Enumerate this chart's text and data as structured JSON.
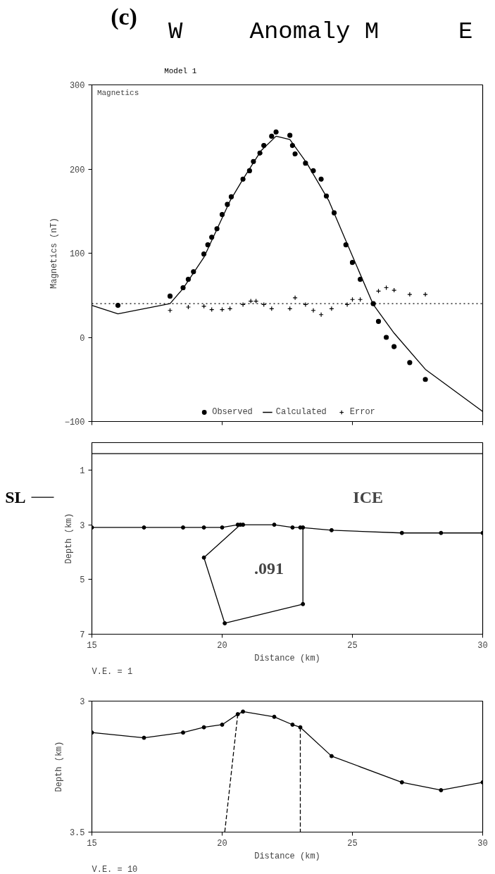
{
  "chart_data": [
    {
      "type": "scatter",
      "title": "Anomaly M",
      "ylabel": "Magnetics (nT)",
      "annotations": [
        "(c)",
        "W",
        "E",
        "Model 1",
        "Magnetics"
      ],
      "xlim": [
        15,
        30
      ],
      "ylim": [
        -100,
        300
      ],
      "xticks": [
        15,
        20,
        25,
        30
      ],
      "yticks": [
        -100,
        0,
        100,
        200,
        300
      ],
      "tick_labels": "y",
      "legend": "bottom",
      "ref_lines": [
        {
          "axis": "y",
          "value": 40,
          "label": null,
          "color": "#000000",
          "line_style": "dotted"
        }
      ],
      "series": [
        {
          "name": "Observed",
          "type": "scatter",
          "marker": "circle",
          "color": "#000000",
          "x": [
            16.0,
            18.0,
            18.5,
            18.7,
            18.9,
            19.3,
            19.45,
            19.6,
            19.8,
            20.0,
            20.2,
            20.35,
            20.8,
            21.05,
            21.2,
            21.45,
            21.6,
            21.9,
            22.07,
            22.6,
            22.7,
            22.8,
            23.2,
            23.5,
            23.8,
            24.0,
            24.3,
            24.75,
            25.0,
            25.3,
            25.8,
            26.0,
            26.3,
            26.6,
            27.2,
            27.8
          ],
          "values": [
            38,
            49,
            59,
            69,
            78,
            99,
            110,
            119,
            129,
            146,
            158,
            167,
            188,
            198,
            209,
            219,
            228,
            239,
            244,
            240,
            228,
            218,
            207,
            198,
            188,
            168,
            148,
            110,
            89,
            69,
            40,
            19,
            0,
            -11,
            -30,
            -50
          ]
        },
        {
          "name": "Calculated",
          "type": "line",
          "marker": "none",
          "color": "#000000",
          "x": [
            15,
            16,
            18,
            18.5,
            19.3,
            20.3,
            20.8,
            21.5,
            22.07,
            22.6,
            23.25,
            24.1,
            24.8,
            25.8,
            26.6,
            27.8,
            30
          ],
          "values": [
            38,
            28,
            40,
            58,
            95,
            162,
            188,
            222,
            239,
            235,
            207,
            162,
            111,
            39,
            5,
            -38,
            -88
          ]
        },
        {
          "name": "Error",
          "type": "scatter",
          "marker": "cross",
          "color": "#000000",
          "x": [
            18.0,
            18.7,
            19.3,
            19.6,
            20.0,
            20.3,
            20.8,
            21.1,
            21.3,
            21.6,
            21.9,
            22.6,
            22.8,
            23.2,
            23.5,
            23.8,
            24.2,
            24.8,
            25.0,
            25.3,
            26.0,
            26.3,
            26.6,
            27.2,
            27.8
          ],
          "values": [
            32,
            36,
            37,
            33,
            33,
            34,
            39,
            43,
            43,
            39,
            34,
            34,
            47,
            39,
            32,
            27,
            34,
            39,
            45,
            45,
            55,
            59,
            56,
            51,
            51
          ]
        }
      ]
    },
    {
      "type": "line",
      "xlabel": "Distance (km)",
      "ylabel": "Depth (km)",
      "annotations": [
        "SL",
        "ICE",
        ".091",
        "V.E. = 1"
      ],
      "xlim": [
        15,
        30
      ],
      "ylim": [
        7,
        0
      ],
      "xticks": [
        15,
        20,
        25,
        30
      ],
      "yticks": [
        1,
        3,
        5,
        7
      ],
      "marker": "circle",
      "ref_lines": [
        {
          "axis": "y",
          "value": 0.4,
          "label": null,
          "color": "#000000",
          "line_style": "solid"
        }
      ],
      "series": [
        {
          "color": "#000000",
          "x": [
            15,
            17,
            18.5,
            19.3,
            20,
            20.6,
            20.8,
            22,
            22.7,
            23,
            24.2,
            26.9,
            28.4,
            30
          ],
          "values": [
            3.1,
            3.1,
            3.1,
            3.1,
            3.1,
            3.0,
            3.0,
            3.0,
            3.1,
            3.1,
            3.2,
            3.3,
            3.3,
            3.3
          ]
        },
        {
          "color": "#000000",
          "x": [
            20.7,
            19.3,
            20.1,
            23.1,
            23.1
          ],
          "values": [
            3.0,
            4.2,
            6.6,
            5.9,
            3.1
          ]
        }
      ]
    },
    {
      "type": "line",
      "xlabel": "Distance (km)",
      "ylabel": "Depth (km)",
      "annotations": [
        "V.E. = 10"
      ],
      "xlim": [
        15,
        30
      ],
      "ylim": [
        3.5,
        3
      ],
      "xticks": [
        15,
        20,
        25,
        30
      ],
      "yticks": [
        3,
        3.5
      ],
      "marker": "circle",
      "series": [
        {
          "color": "#000000",
          "x": [
            15,
            17,
            18.5,
            19.3,
            20,
            20.6,
            20.8,
            22,
            22.7,
            23,
            24.2,
            26.9,
            28.4,
            30
          ],
          "values": [
            3.12,
            3.14,
            3.12,
            3.1,
            3.09,
            3.05,
            3.04,
            3.06,
            3.09,
            3.1,
            3.21,
            3.31,
            3.34,
            3.31
          ]
        },
        {
          "color": "#000000",
          "marker": "none",
          "line_style": "dashed",
          "x": [
            20.6,
            20.1
          ],
          "values": [
            3.05,
            3.5
          ]
        },
        {
          "color": "#000000",
          "marker": "none",
          "line_style": "dashed",
          "x": [
            23.0,
            23.0
          ],
          "values": [
            3.1,
            3.5
          ]
        }
      ]
    }
  ]
}
